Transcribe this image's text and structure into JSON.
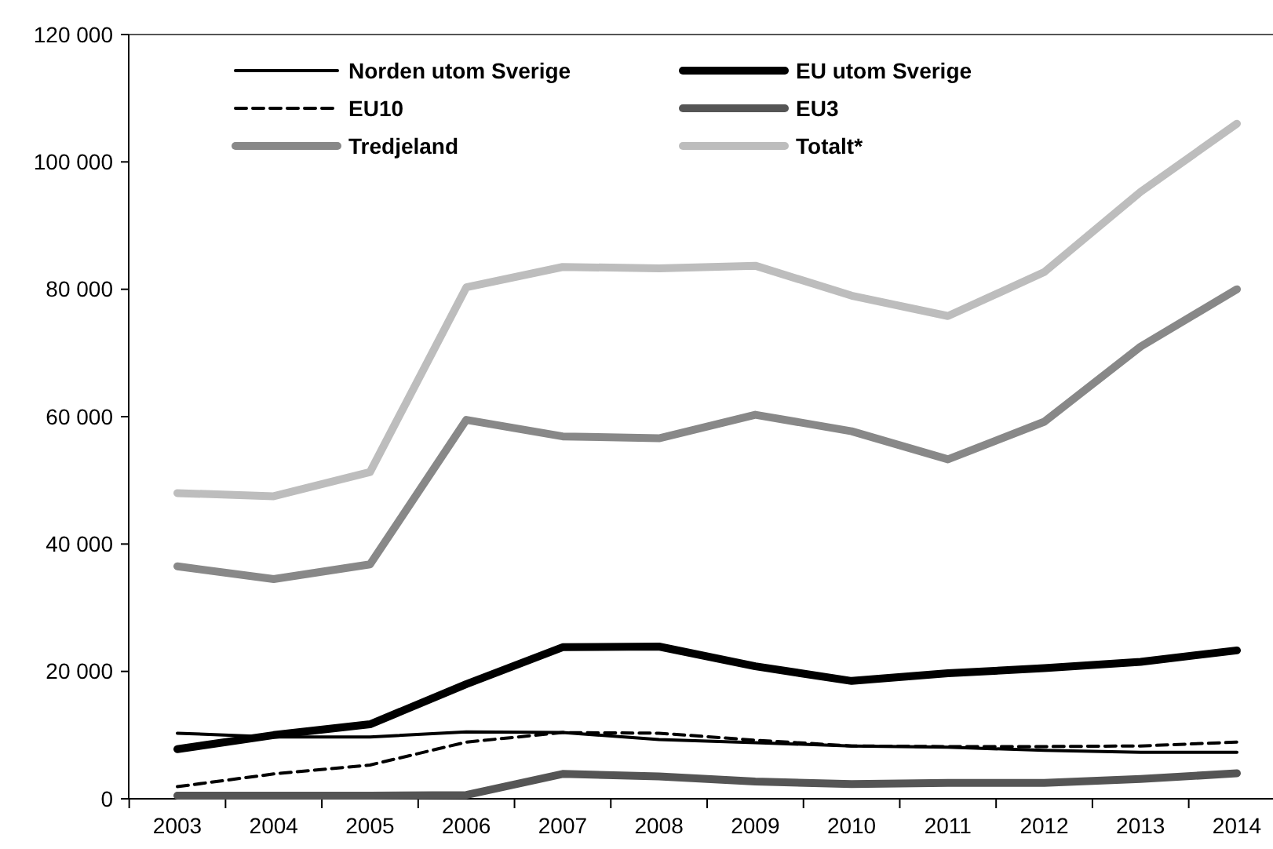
{
  "chart_data": {
    "type": "line",
    "categories": [
      "2003",
      "2004",
      "2005",
      "2006",
      "2007",
      "2008",
      "2009",
      "2010",
      "2011",
      "2012",
      "2013",
      "2014"
    ],
    "series": [
      {
        "name": "Norden utom Sverige",
        "color": "#000000",
        "line_style": "solid",
        "values": [
          10300,
          9700,
          9700,
          10500,
          10400,
          9300,
          8800,
          8300,
          8100,
          7600,
          7300,
          7300
        ]
      },
      {
        "name": "EU utom Sverige",
        "color": "#000000",
        "line_style": "solid",
        "values": [
          7800,
          10000,
          11700,
          18000,
          23800,
          23900,
          20800,
          18500,
          19700,
          20500,
          21500,
          23300
        ]
      },
      {
        "name": "EU10",
        "color": "#000000",
        "line_style": "dashed",
        "values": [
          1900,
          3900,
          5300,
          8900,
          10400,
          10300,
          9200,
          8300,
          8200,
          8200,
          8300,
          8900
        ]
      },
      {
        "name": "EU3",
        "color": "#555555",
        "line_style": "solid",
        "values": [
          500,
          500,
          500,
          600,
          3900,
          3500,
          2700,
          2300,
          2500,
          2500,
          3100,
          4000
        ]
      },
      {
        "name": "Tredjeland",
        "color": "#888888",
        "line_style": "solid",
        "values": [
          36500,
          34500,
          36800,
          59500,
          56900,
          56600,
          60300,
          57700,
          53300,
          59200,
          71000,
          80000
        ]
      },
      {
        "name": "Totalt*",
        "color": "#bdbdbd",
        "line_style": "solid",
        "values": [
          48000,
          47500,
          51300,
          80300,
          83500,
          83300,
          83700,
          79000,
          75800,
          82700,
          95300,
          106000
        ]
      }
    ],
    "ylim": [
      0,
      120000
    ],
    "yticks": [
      0,
      {
        "value": 20000,
        "label": "20 000"
      },
      {
        "value": 40000,
        "label": "40 000"
      },
      {
        "value": 60000,
        "label": "60 000"
      },
      {
        "value": 80000,
        "label": "80 000"
      },
      {
        "value": 100000,
        "label": "100 000"
      },
      {
        "value": 120000,
        "label": "120 000"
      }
    ],
    "grid": false,
    "legend": "top",
    "marker": "none"
  }
}
